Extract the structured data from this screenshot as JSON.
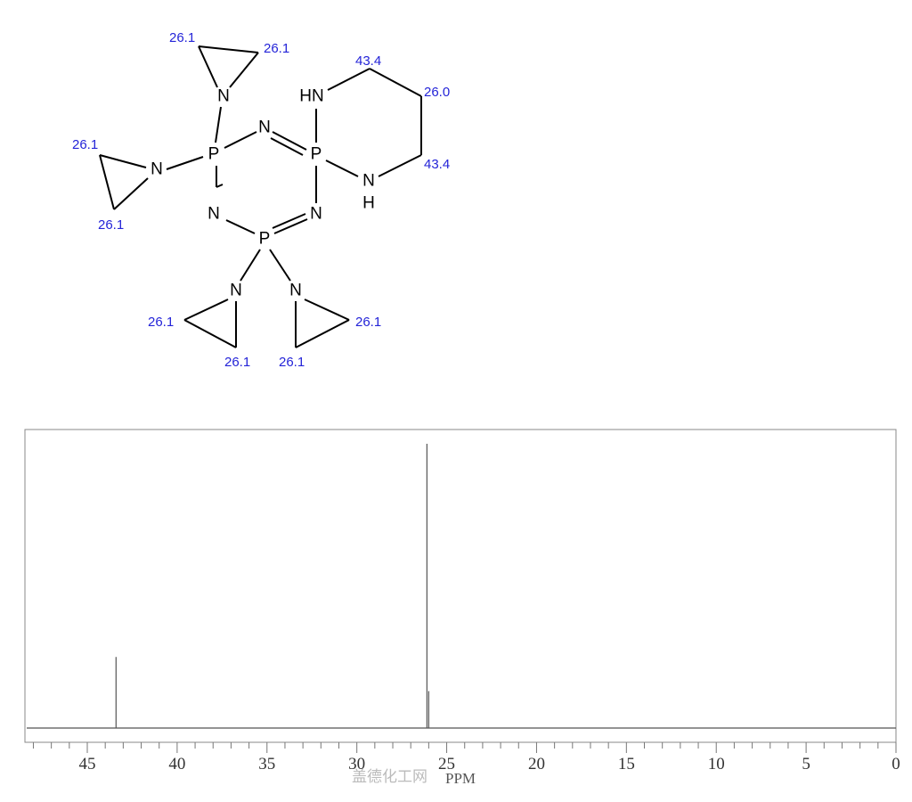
{
  "molecule": {
    "atoms": [
      "N",
      "P",
      "N",
      "N",
      "P",
      "HN",
      "N",
      "H",
      "N",
      "P",
      "N",
      "N",
      "N"
    ],
    "labels": [
      "26.1",
      "26.1",
      "26.1",
      "26.1",
      "43.4",
      "26.0",
      "43.4",
      "26.1",
      "26.1",
      "26.1",
      "26.1"
    ]
  },
  "chart_data": {
    "type": "line",
    "title": "",
    "xlabel": "PPM",
    "ylabel": "",
    "xlim": [
      48.5,
      0
    ],
    "x_reversed": true,
    "x_ticks_major": [
      45,
      40,
      35,
      30,
      25,
      20,
      15,
      10,
      5,
      0
    ],
    "x_tick_labels": [
      "45",
      "40",
      "35",
      "30",
      "25",
      "20",
      "15",
      "10",
      "5",
      "0"
    ],
    "minor_tick_step": 1,
    "grid": false,
    "peaks": [
      {
        "ppm": 43.4,
        "relative_intensity": 0.25
      },
      {
        "ppm": 26.1,
        "relative_intensity": 1.0
      },
      {
        "ppm": 26.0,
        "relative_intensity": 0.13
      }
    ],
    "colors": {
      "spectrum": "#555555",
      "frame": "#888888",
      "shift_labels": "#2424d8"
    }
  },
  "watermark": "盖德化工网"
}
